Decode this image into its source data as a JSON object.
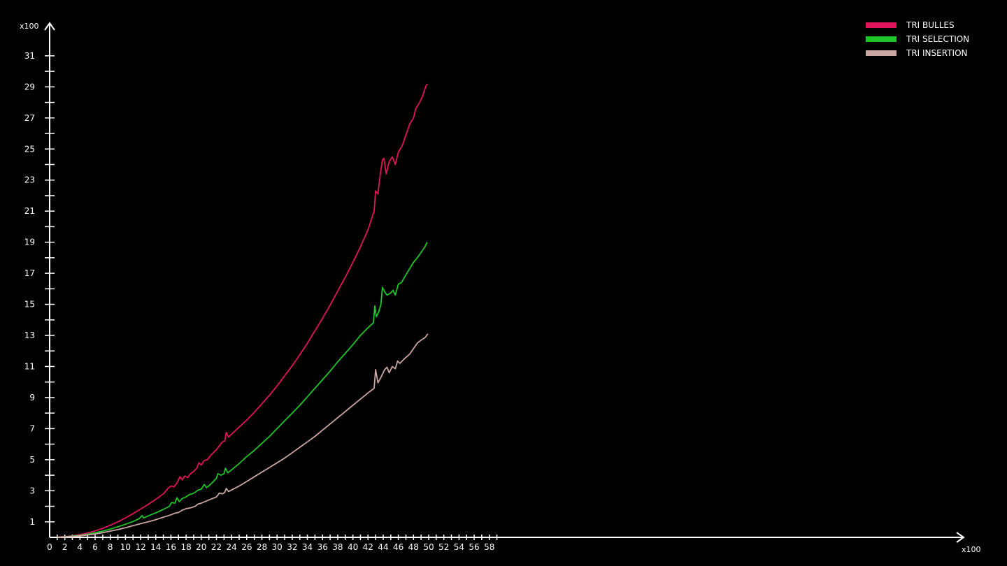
{
  "chart_data": {
    "type": "line",
    "x_multiplier": "x100",
    "y_multiplier": "x100",
    "xlim": [
      0,
      60
    ],
    "ylim": [
      0,
      32
    ],
    "x_ticks": [
      0,
      2,
      4,
      6,
      8,
      10,
      12,
      14,
      16,
      18,
      20,
      22,
      24,
      26,
      28,
      30,
      32,
      34,
      36,
      38,
      40,
      42,
      44,
      46,
      48,
      50,
      52,
      54,
      56,
      58
    ],
    "y_ticks": [
      1,
      3,
      5,
      7,
      9,
      11,
      13,
      15,
      17,
      19,
      21,
      23,
      25,
      27,
      29,
      31
    ],
    "grid": false,
    "legend_position": "top-right",
    "series": [
      {
        "name": "TRI BULLES",
        "color": "#e0145a",
        "points": [
          [
            1,
            0.02
          ],
          [
            2,
            0.05
          ],
          [
            3,
            0.1
          ],
          [
            4,
            0.18
          ],
          [
            5,
            0.28
          ],
          [
            6,
            0.42
          ],
          [
            7,
            0.58
          ],
          [
            8,
            0.78
          ],
          [
            9,
            1.0
          ],
          [
            10,
            1.25
          ],
          [
            11,
            1.52
          ],
          [
            12,
            1.82
          ],
          [
            13,
            2.12
          ],
          [
            14,
            2.45
          ],
          [
            15,
            2.8
          ],
          [
            15.6,
            3.15
          ],
          [
            16,
            3.3
          ],
          [
            16.4,
            3.25
          ],
          [
            16.8,
            3.5
          ],
          [
            17.2,
            3.9
          ],
          [
            17.5,
            3.7
          ],
          [
            17.8,
            3.95
          ],
          [
            18.2,
            3.85
          ],
          [
            18.6,
            4.1
          ],
          [
            19,
            4.25
          ],
          [
            19.4,
            4.45
          ],
          [
            19.7,
            4.8
          ],
          [
            20,
            4.65
          ],
          [
            20.4,
            4.95
          ],
          [
            20.8,
            5.0
          ],
          [
            21.2,
            5.25
          ],
          [
            21.6,
            5.45
          ],
          [
            22,
            5.65
          ],
          [
            22.4,
            5.9
          ],
          [
            22.8,
            6.15
          ],
          [
            23.1,
            6.2
          ],
          [
            23.3,
            6.75
          ],
          [
            23.6,
            6.45
          ],
          [
            24,
            6.65
          ],
          [
            25,
            7.1
          ],
          [
            26,
            7.55
          ],
          [
            27,
            8.05
          ],
          [
            28,
            8.6
          ],
          [
            29,
            9.15
          ],
          [
            30,
            9.75
          ],
          [
            31,
            10.4
          ],
          [
            32,
            11.05
          ],
          [
            33,
            11.75
          ],
          [
            34,
            12.5
          ],
          [
            35,
            13.3
          ],
          [
            36,
            14.1
          ],
          [
            37,
            14.95
          ],
          [
            38,
            15.85
          ],
          [
            39,
            16.75
          ],
          [
            40,
            17.7
          ],
          [
            41,
            18.7
          ],
          [
            42,
            19.8
          ],
          [
            42.8,
            21.0
          ],
          [
            43,
            22.3
          ],
          [
            43.3,
            22.1
          ],
          [
            43.6,
            23.3
          ],
          [
            43.9,
            24.3
          ],
          [
            44.1,
            24.4
          ],
          [
            44.4,
            23.4
          ],
          [
            44.8,
            24.2
          ],
          [
            45.2,
            24.5
          ],
          [
            45.6,
            24.0
          ],
          [
            46,
            24.8
          ],
          [
            46.5,
            25.2
          ],
          [
            47,
            25.9
          ],
          [
            47.5,
            26.6
          ],
          [
            48,
            27.0
          ],
          [
            48.3,
            27.6
          ],
          [
            48.8,
            28.0
          ],
          [
            49.2,
            28.4
          ],
          [
            49.6,
            29.0
          ],
          [
            49.8,
            29.2
          ]
        ]
      },
      {
        "name": "TRI SELECTION",
        "color": "#1fc428",
        "points": [
          [
            1,
            0.02
          ],
          [
            2,
            0.04
          ],
          [
            3,
            0.08
          ],
          [
            4,
            0.13
          ],
          [
            5,
            0.2
          ],
          [
            6,
            0.3
          ],
          [
            7,
            0.4
          ],
          [
            8,
            0.53
          ],
          [
            9,
            0.68
          ],
          [
            10,
            0.84
          ],
          [
            11,
            1.02
          ],
          [
            11.8,
            1.2
          ],
          [
            12.2,
            1.4
          ],
          [
            12.4,
            1.25
          ],
          [
            13,
            1.38
          ],
          [
            14,
            1.58
          ],
          [
            15,
            1.8
          ],
          [
            15.8,
            2.0
          ],
          [
            16.1,
            2.25
          ],
          [
            16.5,
            2.2
          ],
          [
            16.8,
            2.55
          ],
          [
            17.1,
            2.3
          ],
          [
            17.5,
            2.5
          ],
          [
            18,
            2.6
          ],
          [
            18.4,
            2.75
          ],
          [
            18.8,
            2.8
          ],
          [
            19.2,
            2.9
          ],
          [
            19.6,
            3.05
          ],
          [
            20,
            3.1
          ],
          [
            20.4,
            3.4
          ],
          [
            20.7,
            3.2
          ],
          [
            21.2,
            3.4
          ],
          [
            21.6,
            3.6
          ],
          [
            22,
            3.8
          ],
          [
            22.2,
            4.1
          ],
          [
            22.6,
            4.0
          ],
          [
            23.0,
            4.1
          ],
          [
            23.2,
            4.45
          ],
          [
            23.5,
            4.15
          ],
          [
            24,
            4.35
          ],
          [
            25,
            4.75
          ],
          [
            26,
            5.2
          ],
          [
            27,
            5.6
          ],
          [
            28,
            6.05
          ],
          [
            29,
            6.5
          ],
          [
            30,
            7.0
          ],
          [
            31,
            7.5
          ],
          [
            32,
            8.0
          ],
          [
            33,
            8.5
          ],
          [
            34,
            9.05
          ],
          [
            35,
            9.6
          ],
          [
            36,
            10.15
          ],
          [
            37,
            10.7
          ],
          [
            38,
            11.3
          ],
          [
            39,
            11.85
          ],
          [
            40,
            12.4
          ],
          [
            41,
            13.0
          ],
          [
            42,
            13.5
          ],
          [
            42.7,
            13.8
          ],
          [
            42.9,
            14.9
          ],
          [
            43.1,
            14.2
          ],
          [
            43.4,
            14.5
          ],
          [
            43.7,
            15.0
          ],
          [
            43.9,
            16.1
          ],
          [
            44.2,
            15.8
          ],
          [
            44.5,
            15.6
          ],
          [
            44.9,
            15.7
          ],
          [
            45.3,
            15.9
          ],
          [
            45.6,
            15.6
          ],
          [
            46,
            16.3
          ],
          [
            46.4,
            16.4
          ],
          [
            47,
            16.9
          ],
          [
            47.5,
            17.3
          ],
          [
            48,
            17.7
          ],
          [
            48.5,
            18.0
          ],
          [
            49,
            18.35
          ],
          [
            49.5,
            18.7
          ],
          [
            49.8,
            19.0
          ]
        ]
      },
      {
        "name": "TRI INSERTION",
        "color": "#c9a6a1",
        "points": [
          [
            1,
            0.02
          ],
          [
            2,
            0.03
          ],
          [
            3,
            0.06
          ],
          [
            4,
            0.1
          ],
          [
            5,
            0.15
          ],
          [
            6,
            0.22
          ],
          [
            7,
            0.3
          ],
          [
            8,
            0.4
          ],
          [
            9,
            0.5
          ],
          [
            10,
            0.62
          ],
          [
            11,
            0.75
          ],
          [
            12,
            0.88
          ],
          [
            13,
            1.0
          ],
          [
            14,
            1.14
          ],
          [
            15,
            1.3
          ],
          [
            16,
            1.45
          ],
          [
            16.5,
            1.55
          ],
          [
            17,
            1.6
          ],
          [
            17.5,
            1.75
          ],
          [
            18,
            1.85
          ],
          [
            18.6,
            1.9
          ],
          [
            19.2,
            2.0
          ],
          [
            19.6,
            2.15
          ],
          [
            20,
            2.2
          ],
          [
            21,
            2.4
          ],
          [
            22,
            2.6
          ],
          [
            22.4,
            2.85
          ],
          [
            22.8,
            2.8
          ],
          [
            23.1,
            2.9
          ],
          [
            23.3,
            3.15
          ],
          [
            23.6,
            2.95
          ],
          [
            24,
            3.05
          ],
          [
            25,
            3.3
          ],
          [
            26,
            3.6
          ],
          [
            27,
            3.9
          ],
          [
            28,
            4.2
          ],
          [
            29,
            4.5
          ],
          [
            30,
            4.8
          ],
          [
            31,
            5.1
          ],
          [
            32,
            5.45
          ],
          [
            33,
            5.8
          ],
          [
            34,
            6.15
          ],
          [
            35,
            6.5
          ],
          [
            36,
            6.9
          ],
          [
            37,
            7.3
          ],
          [
            38,
            7.7
          ],
          [
            39,
            8.1
          ],
          [
            40,
            8.5
          ],
          [
            41,
            8.9
          ],
          [
            42,
            9.3
          ],
          [
            42.8,
            9.6
          ],
          [
            43.0,
            10.8
          ],
          [
            43.3,
            9.95
          ],
          [
            43.6,
            10.2
          ],
          [
            43.9,
            10.5
          ],
          [
            44.2,
            10.8
          ],
          [
            44.5,
            10.95
          ],
          [
            44.8,
            10.6
          ],
          [
            45.2,
            11.0
          ],
          [
            45.6,
            10.85
          ],
          [
            45.9,
            11.35
          ],
          [
            46.2,
            11.2
          ],
          [
            46.8,
            11.5
          ],
          [
            47.5,
            11.8
          ],
          [
            48,
            12.15
          ],
          [
            48.5,
            12.5
          ],
          [
            49,
            12.7
          ],
          [
            49.5,
            12.85
          ],
          [
            49.9,
            13.1
          ]
        ]
      }
    ]
  }
}
